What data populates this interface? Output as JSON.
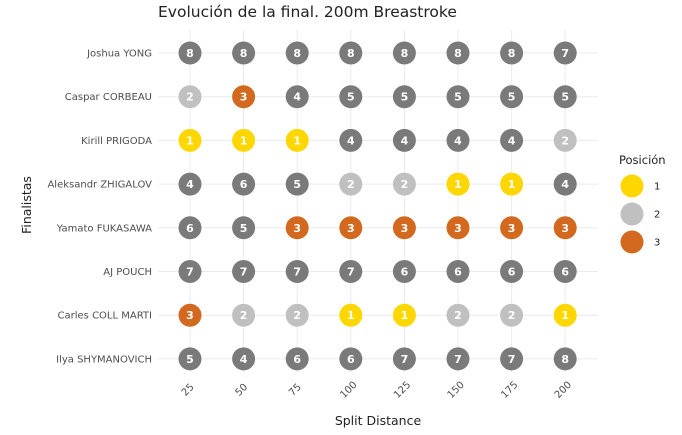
{
  "chart_data": {
    "type": "scatter",
    "title": "Evolución de la final. 200m Breastroke",
    "xlabel": "Split Distance",
    "ylabel": "Finalistas",
    "x": [
      25,
      50,
      75,
      100,
      125,
      150,
      175,
      200
    ],
    "swimmers": [
      "Joshua YONG",
      "Caspar CORBEAU",
      "Kirill PRIGODA",
      "Aleksandr ZHIGALOV",
      "Yamato FUKASAWA",
      "AJ POUCH",
      "Carles COLL MARTI",
      "Ilya SHYMANOVICH"
    ],
    "positions": [
      [
        8,
        8,
        8,
        8,
        8,
        8,
        8,
        7
      ],
      [
        2,
        3,
        4,
        5,
        5,
        5,
        5,
        5
      ],
      [
        1,
        1,
        1,
        4,
        4,
        4,
        4,
        2
      ],
      [
        4,
        6,
        5,
        2,
        2,
        1,
        1,
        4
      ],
      [
        6,
        5,
        3,
        3,
        3,
        3,
        3,
        3
      ],
      [
        7,
        7,
        7,
        7,
        6,
        6,
        6,
        6
      ],
      [
        3,
        2,
        2,
        1,
        1,
        2,
        2,
        1
      ],
      [
        5,
        4,
        6,
        6,
        7,
        7,
        7,
        8
      ]
    ],
    "legend": {
      "title": "Posición",
      "placement": "right",
      "entries": [
        {
          "label": "1",
          "color": "#FFD700"
        },
        {
          "label": "2",
          "color": "#C0C0C0"
        },
        {
          "label": "3",
          "color": "#D2691E"
        }
      ]
    },
    "other_color": "#7a7a7a",
    "grid": true
  }
}
